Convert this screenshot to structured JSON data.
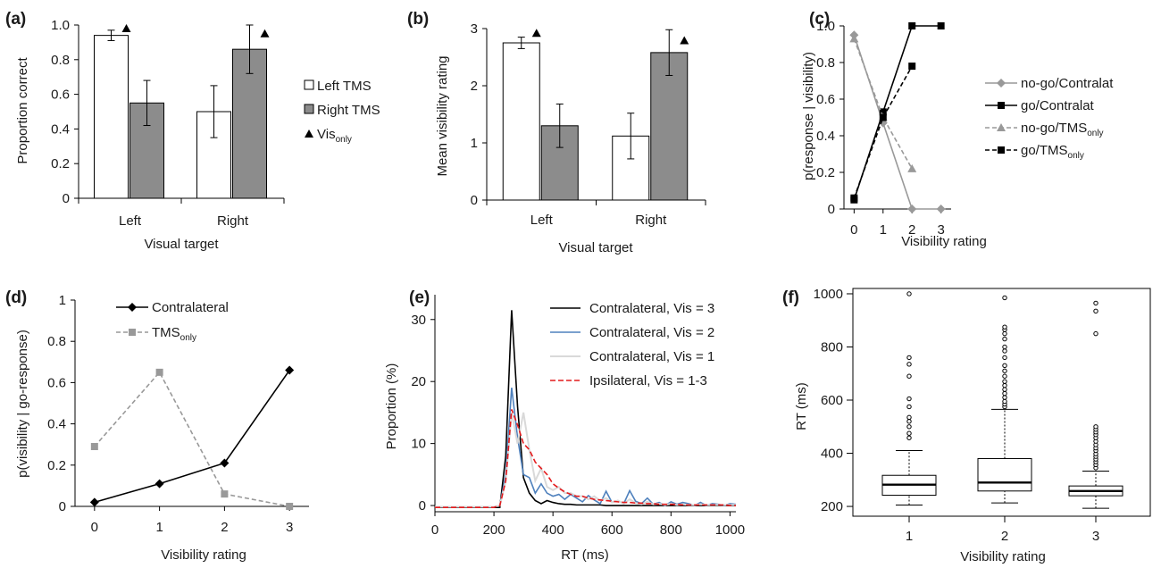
{
  "colors": {
    "left_tms_bar": "#ffffff",
    "right_tms_bar": "#8c8c8c",
    "black": "#000000",
    "gray_series": "#999999",
    "blue_series": "#4f81bd",
    "light_gray_series": "#d9d9d9",
    "red_series": "#e41a1c"
  },
  "chart_data": [
    {
      "panel": "(a)",
      "type": "bar",
      "xlabel": "Visual target",
      "ylabel": "Proportion correct",
      "categories": [
        "Left",
        "Right"
      ],
      "ylim": [
        0,
        1.0
      ],
      "yticks": [
        "0",
        "0.2",
        "0.4",
        "0.6",
        "0.8",
        "1.0"
      ],
      "ytick_values": [
        0,
        0.2,
        0.4,
        0.6,
        0.8,
        1.0
      ],
      "series": [
        {
          "name": "Left TMS",
          "values": [
            0.94,
            0.5
          ],
          "err": [
            0.03,
            0.15
          ],
          "color": "#ffffff"
        },
        {
          "name": "Right TMS",
          "values": [
            0.55,
            0.86
          ],
          "err": [
            0.13,
            0.14
          ],
          "color": "#8c8c8c"
        }
      ],
      "markers": {
        "name": "Vis",
        "subscript": "only",
        "symbol": "▲",
        "points": [
          {
            "category": 0,
            "series": 0,
            "y": 0.99
          },
          {
            "category": 1,
            "series": 1,
            "y": 0.96
          }
        ]
      },
      "legend": [
        {
          "label": "Left TMS",
          "symbol": "white-square"
        },
        {
          "label": "Right TMS",
          "symbol": "gray-square"
        },
        {
          "label": "Vis",
          "subscript": "only",
          "symbol": "triangle"
        }
      ]
    },
    {
      "panel": "(b)",
      "type": "bar",
      "xlabel": "Visual target",
      "ylabel": "Mean visibility rating",
      "categories": [
        "Left",
        "Right"
      ],
      "ylim": [
        0,
        3
      ],
      "yticks": [
        "0",
        "1",
        "2",
        "3"
      ],
      "ytick_values": [
        0,
        1,
        2,
        3
      ],
      "series": [
        {
          "name": "Left TMS",
          "values": [
            2.75,
            1.12
          ],
          "err": [
            0.1,
            0.4
          ],
          "color": "#ffffff"
        },
        {
          "name": "Right TMS",
          "values": [
            1.3,
            2.58
          ],
          "err": [
            0.38,
            0.4
          ],
          "color": "#8c8c8c"
        }
      ],
      "markers": {
        "symbol": "▲",
        "points": [
          {
            "category": 0,
            "series": 0,
            "y": 2.95
          },
          {
            "category": 1,
            "series": 1,
            "y": 2.82
          }
        ]
      }
    },
    {
      "panel": "(c)",
      "type": "line",
      "xlabel": "Visibility rating",
      "ylabel": "p(response | visibility)",
      "x": [
        0,
        1,
        2,
        3
      ],
      "xticks": [
        "0",
        "1",
        "2",
        "3"
      ],
      "xlim": [
        -0.35,
        3.35
      ],
      "ylim": [
        0,
        1.0
      ],
      "yticks": [
        "0",
        "0.2",
        "0.4",
        "0.6",
        "0.8",
        "1.0"
      ],
      "ytick_values": [
        0,
        0.2,
        0.4,
        0.6,
        0.8,
        1.0
      ],
      "series": [
        {
          "name": "no-go/Contralat",
          "values": [
            0.95,
            0.47,
            0.0,
            0.0
          ],
          "color": "#999999",
          "dash": false,
          "marker": "diamond"
        },
        {
          "name": "go/Contralat",
          "values": [
            0.05,
            0.53,
            1.0,
            1.0
          ],
          "color": "#000000",
          "dash": false,
          "marker": "square"
        },
        {
          "name": "no-go/TMS",
          "subscript": "only",
          "values": [
            0.93,
            0.5,
            0.22,
            null
          ],
          "color": "#999999",
          "dash": true,
          "marker": "triangle"
        },
        {
          "name": "go/TMS",
          "subscript": "only",
          "values": [
            0.06,
            0.5,
            0.78,
            null
          ],
          "color": "#000000",
          "dash": true,
          "marker": "square"
        }
      ]
    },
    {
      "panel": "(d)",
      "type": "line",
      "xlabel": "Visibility rating",
      "ylabel": "p(visibility | go-response)",
      "x": [
        0,
        1,
        2,
        3
      ],
      "xticks": [
        "0",
        "1",
        "2",
        "3"
      ],
      "xlim": [
        -0.3,
        3.3
      ],
      "ylim": [
        0,
        1
      ],
      "yticks": [
        "0",
        "0.2",
        "0.4",
        "0.6",
        "0.8",
        "1"
      ],
      "ytick_values": [
        0,
        0.2,
        0.4,
        0.6,
        0.8,
        1
      ],
      "series": [
        {
          "name": "Contralateral",
          "values": [
            0.02,
            0.11,
            0.21,
            0.66
          ],
          "color": "#000000",
          "dash": false,
          "marker": "diamond"
        },
        {
          "name": "TMS",
          "subscript": "only",
          "values": [
            0.29,
            0.65,
            0.06,
            0.0
          ],
          "color": "#999999",
          "dash": true,
          "marker": "square"
        }
      ]
    },
    {
      "panel": "(e)",
      "type": "line",
      "xlabel": "RT (ms)",
      "ylabel": "Proportion (%)",
      "xlim": [
        0,
        1020
      ],
      "ylim": [
        -1,
        34
      ],
      "xticks": [
        "0",
        "200",
        "400",
        "600",
        "800",
        "1000"
      ],
      "xtick_values": [
        0,
        200,
        400,
        600,
        800,
        1000
      ],
      "yticks": [
        "0",
        "10",
        "20",
        "30"
      ],
      "ytick_values": [
        0,
        10,
        20,
        30
      ],
      "series": [
        {
          "name": "Contralateral, Vis = 3",
          "color": "#000000",
          "dash": false,
          "x": [
            0,
            20,
            40,
            60,
            80,
            100,
            120,
            140,
            160,
            180,
            200,
            220,
            240,
            260,
            280,
            300,
            320,
            340,
            360,
            380,
            400,
            420,
            440,
            460,
            480,
            500,
            520,
            540,
            560,
            580,
            600,
            620,
            640,
            660,
            680,
            700,
            720,
            740,
            760,
            780,
            800,
            820,
            840,
            860,
            880,
            900,
            920,
            940,
            960,
            980,
            1000,
            1020
          ],
          "values": [
            -0.3,
            -0.3,
            -0.3,
            -0.3,
            -0.3,
            -0.3,
            -0.3,
            -0.3,
            -0.3,
            -0.3,
            -0.3,
            -0.3,
            8,
            31.5,
            16,
            4.5,
            2.0,
            0.8,
            0.3,
            0.8,
            0.5,
            0.3,
            0.2,
            0.2,
            0.1,
            0.1,
            0.1,
            0.1,
            0.1,
            0.0,
            0.0,
            0.0,
            0.0,
            0.0,
            0.0,
            0.0,
            0.0,
            0.0,
            0.0,
            0.0,
            0.0,
            0.0,
            0.0,
            0.0,
            0.0,
            0.0,
            0.0,
            0.0,
            0.0,
            0.0,
            0.0,
            0.0
          ]
        },
        {
          "name": "Contralateral, Vis = 2",
          "color": "#4f81bd",
          "dash": false,
          "x": [
            0,
            20,
            40,
            60,
            80,
            100,
            120,
            140,
            160,
            180,
            200,
            220,
            240,
            260,
            280,
            300,
            320,
            340,
            360,
            380,
            400,
            420,
            440,
            460,
            480,
            500,
            520,
            540,
            560,
            580,
            600,
            620,
            640,
            660,
            680,
            700,
            720,
            740,
            760,
            780,
            800,
            820,
            840,
            860,
            880,
            900,
            920,
            940,
            960,
            980,
            1000,
            1020
          ],
          "values": [
            -0.2,
            -0.2,
            -0.2,
            -0.2,
            -0.2,
            -0.2,
            -0.2,
            -0.2,
            -0.2,
            -0.2,
            -0.2,
            0.0,
            5,
            19,
            11,
            5,
            4.5,
            2,
            3.5,
            2,
            1.5,
            1.8,
            1,
            1.8,
            1.2,
            0.6,
            1.6,
            0.9,
            0.3,
            2.3,
            0.5,
            0.8,
            0.3,
            2.4,
            0.7,
            0.3,
            1.2,
            0.2,
            0.5,
            0.0,
            0.6,
            0.2,
            0.5,
            0.3,
            0.0,
            0.5,
            0.0,
            0.3,
            0.2,
            0.0,
            0.3,
            0.2
          ]
        },
        {
          "name": "Contralateral, Vis = 1",
          "color": "#d9d9d9",
          "dash": false,
          "x": [
            0,
            20,
            40,
            60,
            80,
            100,
            120,
            140,
            160,
            180,
            200,
            220,
            240,
            260,
            280,
            300,
            320,
            340,
            360,
            380,
            400,
            420,
            440,
            460,
            480,
            500,
            520,
            540,
            560,
            580,
            600,
            620,
            640,
            660,
            680,
            700,
            720,
            740,
            760,
            780,
            800,
            820,
            840,
            860,
            880,
            900,
            920,
            940,
            960,
            980,
            1000,
            1020
          ],
          "values": [
            -0.2,
            -0.2,
            -0.2,
            -0.2,
            -0.2,
            -0.2,
            -0.2,
            -0.2,
            -0.2,
            -0.2,
            -0.2,
            0.0,
            4,
            15,
            10,
            15,
            9,
            4,
            6,
            3,
            2.5,
            3,
            2,
            2,
            1.5,
            1.5,
            1,
            1.5,
            0.8,
            1.2,
            0.5,
            0.8,
            0.3,
            1,
            0.4,
            0.2,
            0.6,
            0.2,
            0.3,
            0.1,
            0.3,
            0.1,
            0.2,
            0.1,
            0.1,
            0.2,
            0.1,
            0.1,
            0.1,
            0.1,
            0.1,
            0.1
          ]
        },
        {
          "name": "Ipsilateral, Vis = 1-3",
          "color": "#e41a1c",
          "dash": true,
          "x": [
            0,
            20,
            40,
            60,
            80,
            100,
            120,
            140,
            160,
            180,
            200,
            220,
            240,
            260,
            280,
            300,
            320,
            340,
            360,
            380,
            400,
            420,
            440,
            460,
            480,
            500,
            520,
            540,
            560,
            580,
            600,
            620,
            640,
            660,
            680,
            700,
            720,
            740,
            760,
            780,
            800,
            820,
            840,
            860,
            880,
            900,
            920,
            940,
            960,
            980,
            1000,
            1020
          ],
          "values": [
            -0.3,
            -0.3,
            -0.3,
            -0.3,
            -0.3,
            -0.3,
            -0.3,
            -0.3,
            -0.3,
            -0.3,
            -0.3,
            0.0,
            4,
            15.5,
            13,
            10,
            9,
            7,
            6,
            5,
            3.5,
            2.8,
            2.2,
            1.8,
            1.5,
            1.5,
            1.2,
            1.0,
            0.9,
            0.8,
            0.7,
            0.6,
            0.5,
            0.5,
            0.4,
            0.4,
            0.3,
            0.3,
            0.2,
            0.2,
            0.2,
            0.2,
            0.1,
            0.1,
            0.1,
            0.1,
            0.1,
            0.1,
            0.1,
            0.1,
            0.0,
            0.0
          ]
        }
      ]
    },
    {
      "panel": "(f)",
      "type": "box",
      "xlabel": "Visibility rating",
      "ylabel": "RT (ms)",
      "categories": [
        "1",
        "2",
        "3"
      ],
      "ylim": [
        180,
        1010
      ],
      "yticks": [
        "200",
        "400",
        "600",
        "800",
        "1000"
      ],
      "ytick_values": [
        200,
        400,
        600,
        800,
        1000
      ],
      "boxes": [
        {
          "label": "1",
          "whisker_low": 205,
          "q1": 242,
          "median": 282,
          "q3": 317,
          "whisker_high": 410,
          "outliers": [
            458,
            475,
            500,
            520,
            535,
            575,
            605,
            690,
            735,
            760,
            1000
          ]
        },
        {
          "label": "2",
          "whisker_low": 213,
          "q1": 258,
          "median": 290,
          "q3": 380,
          "whisker_high": 565,
          "outliers": [
            575,
            585,
            595,
            610,
            625,
            640,
            655,
            670,
            690,
            710,
            730,
            760,
            785,
            800,
            830,
            850,
            865,
            875,
            985
          ]
        },
        {
          "label": "3",
          "whisker_low": 193,
          "q1": 240,
          "median": 258,
          "q3": 277,
          "whisker_high": 333,
          "outliers": [
            345,
            357,
            368,
            378,
            388,
            398,
            410,
            420,
            432,
            445,
            458,
            470,
            480,
            490,
            500,
            850,
            935,
            965
          ]
        }
      ]
    }
  ]
}
